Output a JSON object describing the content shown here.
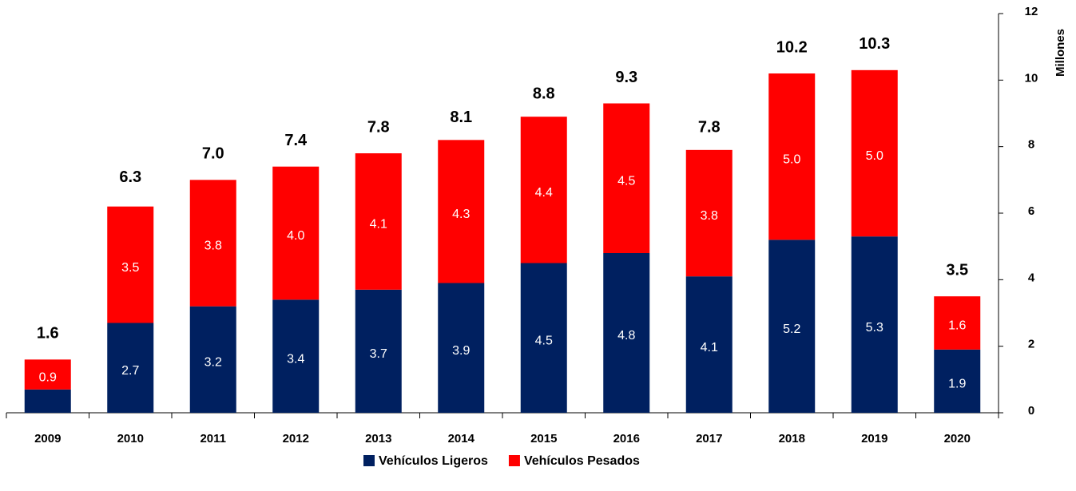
{
  "chart_data": {
    "type": "stacked-bar",
    "y_axis_label": "Millones",
    "categories": [
      "2009",
      "2010",
      "2011",
      "2012",
      "2013",
      "2014",
      "2015",
      "2016",
      "2017",
      "2018",
      "2019",
      "2020"
    ],
    "series": [
      {
        "name": "Vehículos Ligeros",
        "color": "#002060",
        "values": [
          0.7,
          2.7,
          3.2,
          3.4,
          3.7,
          3.9,
          4.5,
          4.8,
          4.1,
          5.2,
          5.3,
          1.9
        ],
        "value_labels": [
          null,
          "2.7",
          "3.2",
          "3.4",
          "3.7",
          "3.9",
          "4.5",
          "4.8",
          "4.1",
          "5.2",
          "5.3",
          "1.9"
        ]
      },
      {
        "name": "Vehículos Pesados",
        "color": "#ff0000",
        "values": [
          0.9,
          3.5,
          3.8,
          4.0,
          4.1,
          4.3,
          4.4,
          4.5,
          3.8,
          5.0,
          5.0,
          1.6
        ],
        "value_labels": [
          "0.9",
          "3.5",
          "3.8",
          "4.0",
          "4.1",
          "4.3",
          "4.4",
          "4.5",
          "3.8",
          "5.0",
          "5.0",
          "1.6"
        ]
      }
    ],
    "totals": [
      1.6,
      6.3,
      7.0,
      7.4,
      7.8,
      8.1,
      8.8,
      9.3,
      7.8,
      10.2,
      10.3,
      3.5
    ],
    "total_labels": [
      "1.6",
      "6.3",
      "7.0",
      "7.4",
      "7.8",
      "8.1",
      "8.8",
      "9.3",
      "7.8",
      "10.2",
      "10.3",
      "3.5"
    ],
    "ylim": [
      0,
      12
    ],
    "yticks": [
      0,
      2,
      4,
      6,
      8,
      10,
      12
    ],
    "y_axis_side": "right",
    "legend": "bottom"
  }
}
